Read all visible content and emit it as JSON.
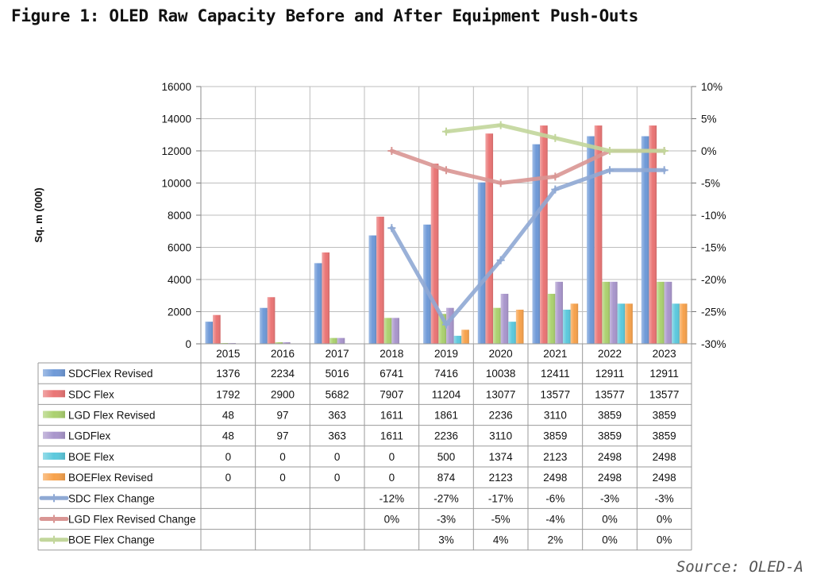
{
  "title": "Figure 1: OLED Raw Capacity Before and After Equipment Push-Outs",
  "source": "Source: OLED-A",
  "chart_data": {
    "type": "bar",
    "categories": [
      "2015",
      "2016",
      "2017",
      "2018",
      "2019",
      "2020",
      "2021",
      "2022",
      "2023"
    ],
    "ylabel": "Sq. m (000)",
    "ylim": [
      0,
      16000
    ],
    "yticks": [
      "0",
      "2000",
      "4000",
      "6000",
      "8000",
      "10000",
      "12000",
      "14000",
      "16000"
    ],
    "y2lim": [
      -30,
      10
    ],
    "y2ticks": [
      "-30%",
      "-25%",
      "-20%",
      "-15%",
      "-10%",
      "-5%",
      "0%",
      "5%",
      "10%"
    ],
    "series": [
      {
        "name": "SDCFlex Revised",
        "kind": "bar",
        "color": "#6f9ad8",
        "values": [
          1376,
          2234,
          5016,
          6741,
          7416,
          10038,
          12411,
          12911,
          12911
        ],
        "labels": [
          "1376",
          "2234",
          "5016",
          "6741",
          "7416",
          "10038",
          "12411",
          "12911",
          "12911"
        ]
      },
      {
        "name": "SDC Flex",
        "kind": "bar",
        "color": "#ea7575",
        "values": [
          1792,
          2900,
          5682,
          7907,
          11204,
          13077,
          13577,
          13577,
          13577
        ],
        "labels": [
          "1792",
          "2900",
          "5682",
          "7907",
          "11204",
          "13077",
          "13577",
          "13577",
          "13577"
        ]
      },
      {
        "name": "LGD Flex Revised",
        "kind": "bar",
        "color": "#abd16f",
        "values": [
          48,
          97,
          363,
          1611,
          1861,
          2236,
          3110,
          3859,
          3859
        ],
        "labels": [
          "48",
          "97",
          "363",
          "1611",
          "1861",
          "2236",
          "3110",
          "3859",
          "3859"
        ]
      },
      {
        "name": "LGDFlex",
        "kind": "bar",
        "color": "#a996cc",
        "values": [
          48,
          97,
          363,
          1611,
          2236,
          3110,
          3859,
          3859,
          3859
        ],
        "labels": [
          "48",
          "97",
          "363",
          "1611",
          "2236",
          "3110",
          "3859",
          "3859",
          "3859"
        ]
      },
      {
        "name": "BOE Flex",
        "kind": "bar",
        "color": "#5cc9dd",
        "values": [
          0,
          0,
          0,
          0,
          500,
          1374,
          2123,
          2498,
          2498
        ],
        "labels": [
          "0",
          "0",
          "0",
          "0",
          "500",
          "1374",
          "2123",
          "2498",
          "2498"
        ]
      },
      {
        "name": "BOEFlex Revised",
        "kind": "bar",
        "color": "#f7a24c",
        "values": [
          0,
          0,
          0,
          0,
          874,
          2123,
          2498,
          2498,
          2498
        ],
        "labels": [
          "0",
          "0",
          "0",
          "0",
          "874",
          "2123",
          "2498",
          "2498",
          "2498"
        ]
      },
      {
        "name": "SDC Flex Change",
        "kind": "line",
        "axis": "right",
        "color": "#8fa9d4",
        "values": [
          null,
          null,
          null,
          -12,
          -27,
          -17,
          -6,
          -3,
          -3
        ],
        "labels": [
          "",
          "",
          "",
          "-12%",
          "-27%",
          "-17%",
          "-6%",
          "-3%",
          "-3%"
        ]
      },
      {
        "name": "LGD Flex Revised Change",
        "kind": "line",
        "axis": "right",
        "color": "#d99694",
        "values": [
          null,
          null,
          null,
          0,
          -3,
          -5,
          -4,
          0,
          0
        ],
        "labels": [
          "",
          "",
          "",
          "0%",
          "-3%",
          "-5%",
          "-4%",
          "0%",
          "0%"
        ]
      },
      {
        "name": "BOE Flex Change",
        "kind": "line",
        "axis": "right",
        "color": "#c2d69b",
        "values": [
          null,
          null,
          null,
          null,
          3,
          4,
          2,
          0,
          0
        ],
        "labels": [
          "",
          "",
          "",
          "",
          "3%",
          "4%",
          "2%",
          "0%",
          "0%"
        ]
      }
    ]
  }
}
